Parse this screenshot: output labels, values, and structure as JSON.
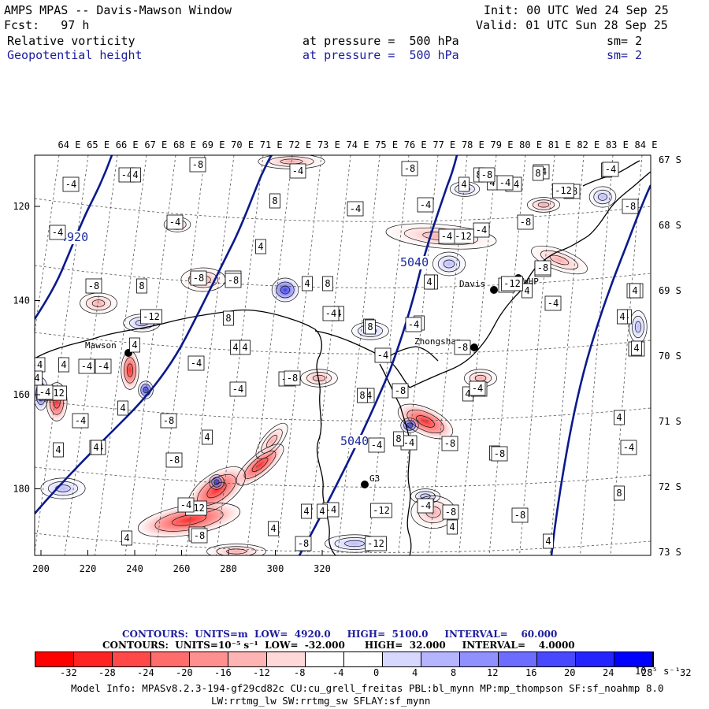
{
  "header": {
    "title": "AMPS MPAS -- Davis-Mawson Window",
    "init": "Init: 00 UTC Wed 24 Sep 25",
    "forecast": "Fcst:   97 h",
    "valid": "Valid: 01 UTC Sun 28 Sep 25",
    "field1": {
      "name": "Relative vorticity",
      "level": "at pressure =  500 hPa",
      "smooth": "sm= 2"
    },
    "field2": {
      "name": "Geopotential height",
      "level": "at pressure =  500 hPa",
      "smooth": "sm= 2"
    }
  },
  "map": {
    "lon_labels": [
      "64 E",
      "65 E",
      "66 E",
      "67 E",
      "68 E",
      "69 E",
      "70 E",
      "71 E",
      "72 E",
      "73 E",
      "74 E",
      "75 E",
      "76 E",
      "77 E",
      "78 E",
      "79 E",
      "80 E",
      "81 E",
      "82 E",
      "83 E",
      "84 E"
    ],
    "lat_labels": [
      "67 S",
      "68 S",
      "69 S",
      "70 S",
      "71 S",
      "72 S",
      "73 S"
    ],
    "x_ticks": [
      "200",
      "220",
      "240",
      "260",
      "280",
      "300",
      "320"
    ],
    "y_ticks": [
      "120",
      "140",
      "160",
      "180"
    ],
    "stations": [
      {
        "name": "Mawson"
      },
      {
        "name": "Davis"
      },
      {
        "name": "WHP"
      },
      {
        "name": "Zhongshan"
      },
      {
        "name": "G3"
      }
    ],
    "height_labels": [
      "4920",
      "5040",
      "5040"
    ],
    "vort_labels": [
      "-4",
      "-4",
      "4",
      "-4",
      "-8",
      "-4",
      "-4",
      "8",
      "-4",
      "8",
      "-4",
      "-8",
      "-4",
      "-12",
      "-8",
      "-4",
      "-8",
      "4",
      "-8",
      "-4",
      "-8",
      "8",
      "-12",
      "-8",
      "-4",
      "4",
      "8",
      "4",
      "4",
      "-4",
      "4",
      "-4",
      "-4",
      "4",
      "4",
      "-4",
      "4",
      "-4",
      "-4",
      "4",
      "-4",
      "-12",
      "-4",
      "4",
      "-4",
      "4",
      "-8",
      "4",
      "-8",
      "8",
      "4",
      "8",
      "-8",
      "-4",
      "4",
      "-4",
      "4",
      "-4",
      "4",
      "-4",
      "-4",
      "-8",
      "-4",
      "-8",
      "4",
      "-4",
      "-4",
      "4",
      "-8",
      "-4",
      "-12",
      "-8",
      "-12",
      "4",
      "4",
      "-4",
      "-8",
      "-12",
      "4",
      "-8",
      "4",
      "8",
      "-4",
      "4",
      "4",
      "-4",
      "4",
      "-4",
      "-8",
      "-8",
      "8",
      "-4",
      "4",
      "4",
      "-4",
      "-12",
      "-4",
      "-8",
      "4",
      "8",
      "4",
      "-4",
      "-8",
      "-8",
      "-4",
      "-8",
      "8",
      "4",
      "-4",
      "-4",
      "-12",
      "-8",
      "8",
      "4",
      "4"
    ]
  },
  "footer": {
    "contours1": "CONTOURS:  UNITS=m  LOW=  4920.0     HIGH=  5100.0     INTERVAL=    60.000",
    "contours2": "CONTOURS:  UNITS=10⁻⁵ s⁻¹  LOW=  -32.000      HIGH=  32.000     INTERVAL=    4.0000",
    "colorbar_labels": [
      "-32",
      "-28",
      "-24",
      "-20",
      "-16",
      "-12",
      "-8",
      "-4",
      "0",
      "4",
      "8",
      "12",
      "16",
      "20",
      "24",
      "28",
      "32"
    ],
    "colorbar_unit": "10⁻⁵ s⁻¹",
    "colorbar_colors": [
      "#ff0000",
      "#ff2424",
      "#ff4848",
      "#ff6c6c",
      "#ff9090",
      "#ffb4b4",
      "#ffd8d8",
      "#ffffff",
      "#ffffff",
      "#d8d8ff",
      "#b4b4ff",
      "#9090ff",
      "#6c6cff",
      "#4848ff",
      "#2424ff",
      "#0000ff"
    ],
    "model_info1": "Model Info: MPASv8.2.3-194-gf29cd82c CU:cu_grell_freitas PBL:bl_mynn MP:mp_thompson SF:sf_noahmp 8.0",
    "model_info2": "LW:rrtmg_lw SW:rrtmg_sw SFLAY:sf_mynn"
  }
}
